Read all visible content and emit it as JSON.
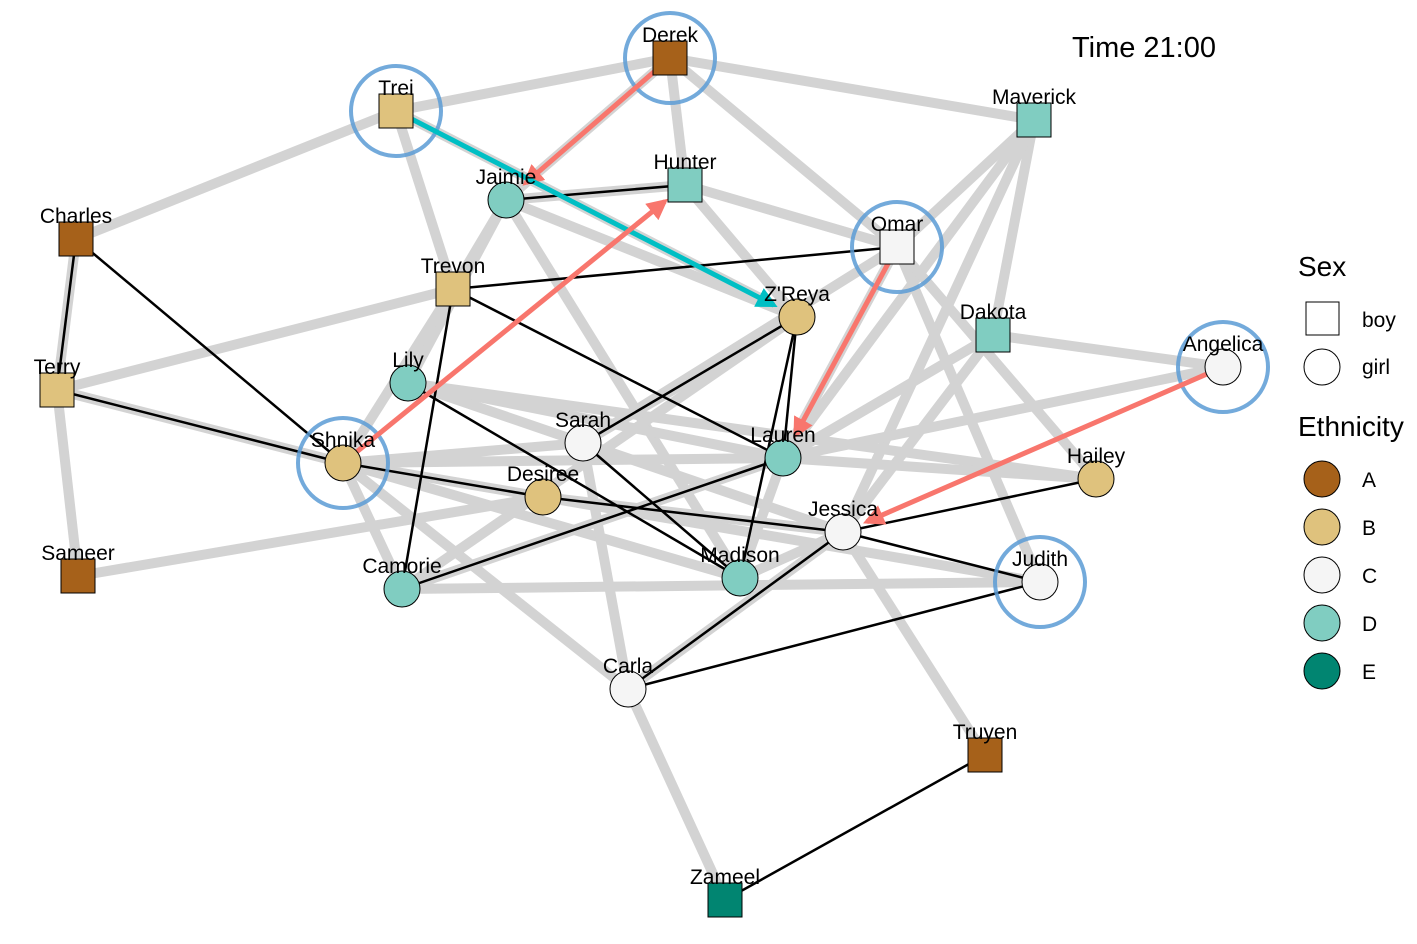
{
  "title": "Time 21:00",
  "colors": {
    "A": "#A6611A",
    "B": "#DFC27D",
    "C": "#F5F5F5",
    "D": "#80CDC1",
    "E": "#018571",
    "gray_edge": "#D3D3D3",
    "black_edge": "#000000",
    "pink_arrow": "#F8766D",
    "teal_arrow": "#00BFC4",
    "highlight": "#5B9BD5"
  },
  "legend": {
    "sex_title": "Sex",
    "sex": [
      {
        "label": "boy",
        "shape": "square"
      },
      {
        "label": "girl",
        "shape": "circle"
      }
    ],
    "ethnicity_title": "Ethnicity",
    "ethnicity": [
      {
        "label": "A"
      },
      {
        "label": "B"
      },
      {
        "label": "C"
      },
      {
        "label": "D"
      },
      {
        "label": "E"
      }
    ]
  },
  "nodes": [
    {
      "id": "derek",
      "label": "Derek",
      "sex": "boy",
      "eth": "A",
      "highlight": true
    },
    {
      "id": "trei",
      "label": "Trei",
      "sex": "boy",
      "eth": "B",
      "highlight": true
    },
    {
      "id": "maverick",
      "label": "Maverick",
      "sex": "boy",
      "eth": "D",
      "highlight": false
    },
    {
      "id": "hunter",
      "label": "Hunter",
      "sex": "boy",
      "eth": "D",
      "highlight": false
    },
    {
      "id": "jaimie",
      "label": "Jaimie",
      "sex": "girl",
      "eth": "D",
      "highlight": false
    },
    {
      "id": "charles",
      "label": "Charles",
      "sex": "boy",
      "eth": "A",
      "highlight": false
    },
    {
      "id": "omar",
      "label": "Omar",
      "sex": "boy",
      "eth": "C",
      "highlight": true
    },
    {
      "id": "trevon",
      "label": "Trevon",
      "sex": "boy",
      "eth": "B",
      "highlight": false
    },
    {
      "id": "zreya",
      "label": "Z'Reya",
      "sex": "girl",
      "eth": "B",
      "highlight": false
    },
    {
      "id": "dakota",
      "label": "Dakota",
      "sex": "boy",
      "eth": "D",
      "highlight": false
    },
    {
      "id": "angelica",
      "label": "Angelica",
      "sex": "girl",
      "eth": "C",
      "highlight": true
    },
    {
      "id": "terry",
      "label": "Terry",
      "sex": "boy",
      "eth": "B",
      "highlight": false
    },
    {
      "id": "lily",
      "label": "Lily",
      "sex": "girl",
      "eth": "D",
      "highlight": false
    },
    {
      "id": "sarah",
      "label": "Sarah",
      "sex": "girl",
      "eth": "C",
      "highlight": false
    },
    {
      "id": "shnika",
      "label": "Shnika",
      "sex": "girl",
      "eth": "B",
      "highlight": true
    },
    {
      "id": "lauren",
      "label": "Lauren",
      "sex": "girl",
      "eth": "D",
      "highlight": false
    },
    {
      "id": "desiree",
      "label": "Desiree",
      "sex": "girl",
      "eth": "B",
      "highlight": false
    },
    {
      "id": "hailey",
      "label": "Hailey",
      "sex": "girl",
      "eth": "B",
      "highlight": false
    },
    {
      "id": "jessica",
      "label": "Jessica",
      "sex": "girl",
      "eth": "C",
      "highlight": false
    },
    {
      "id": "sameer",
      "label": "Sameer",
      "sex": "boy",
      "eth": "A",
      "highlight": false
    },
    {
      "id": "camorie",
      "label": "Camorie",
      "sex": "girl",
      "eth": "D",
      "highlight": false
    },
    {
      "id": "madison",
      "label": "Madison",
      "sex": "girl",
      "eth": "D",
      "highlight": false
    },
    {
      "id": "judith",
      "label": "Judith",
      "sex": "girl",
      "eth": "C",
      "highlight": true
    },
    {
      "id": "carla",
      "label": "Carla",
      "sex": "girl",
      "eth": "C",
      "highlight": false
    },
    {
      "id": "truyen",
      "label": "Truyen",
      "sex": "boy",
      "eth": "A",
      "highlight": false
    },
    {
      "id": "zameel",
      "label": "Zameel",
      "sex": "boy",
      "eth": "E",
      "highlight": false
    }
  ],
  "gray_edges": [
    [
      "trei",
      "derek"
    ],
    [
      "derek",
      "maverick"
    ],
    [
      "derek",
      "hunter"
    ],
    [
      "derek",
      "omar"
    ],
    [
      "derek",
      "jaimie"
    ],
    [
      "trei",
      "trevon"
    ],
    [
      "charles",
      "trei"
    ],
    [
      "trei",
      "zreya"
    ],
    [
      "maverick",
      "omar"
    ],
    [
      "maverick",
      "dakota"
    ],
    [
      "maverick",
      "jessica"
    ],
    [
      "maverick",
      "lauren"
    ],
    [
      "hunter",
      "omar"
    ],
    [
      "hunter",
      "zreya"
    ],
    [
      "hunter",
      "jaimie"
    ],
    [
      "jaimie",
      "trevon"
    ],
    [
      "jaimie",
      "lily"
    ],
    [
      "jaimie",
      "madison"
    ],
    [
      "jaimie",
      "zreya"
    ],
    [
      "charles",
      "terry"
    ],
    [
      "omar",
      "lauren"
    ],
    [
      "omar",
      "judith"
    ],
    [
      "omar",
      "hailey"
    ],
    [
      "omar",
      "sarah"
    ],
    [
      "trevon",
      "terry"
    ],
    [
      "trevon",
      "shnika"
    ],
    [
      "dakota",
      "angelica"
    ],
    [
      "dakota",
      "lauren"
    ],
    [
      "dakota",
      "jessica"
    ],
    [
      "terry",
      "sameer"
    ],
    [
      "terry",
      "shnika"
    ],
    [
      "lily",
      "lauren"
    ],
    [
      "lily",
      "jessica"
    ],
    [
      "lily",
      "hailey"
    ],
    [
      "sarah",
      "shnika"
    ],
    [
      "sarah",
      "zreya"
    ],
    [
      "shnika",
      "desiree"
    ],
    [
      "shnika",
      "carla"
    ],
    [
      "shnika",
      "camorie"
    ],
    [
      "shnika",
      "madison"
    ],
    [
      "shnika",
      "lauren"
    ],
    [
      "lauren",
      "hailey"
    ],
    [
      "lauren",
      "madison"
    ],
    [
      "desiree",
      "jessica"
    ],
    [
      "desiree",
      "judith"
    ],
    [
      "desiree",
      "sameer"
    ],
    [
      "jessica",
      "truyen"
    ],
    [
      "jessica",
      "carla"
    ],
    [
      "jessica",
      "madison"
    ],
    [
      "camorie",
      "judith"
    ],
    [
      "camorie",
      "zreya"
    ],
    [
      "camorie",
      "lauren"
    ],
    [
      "carla",
      "zameel"
    ],
    [
      "carla",
      "sarah"
    ],
    [
      "carla",
      "jessica"
    ],
    [
      "angelica",
      "lauren"
    ]
  ],
  "black_edges": [
    [
      "charles",
      "terry"
    ],
    [
      "charles",
      "shnika"
    ],
    [
      "terry",
      "shnika"
    ],
    [
      "trevon",
      "omar"
    ],
    [
      "trevon",
      "camorie"
    ],
    [
      "trevon",
      "lauren"
    ],
    [
      "jaimie",
      "hunter"
    ],
    [
      "lily",
      "madison"
    ],
    [
      "sarah",
      "madison"
    ],
    [
      "sarah",
      "zreya"
    ],
    [
      "zreya",
      "lauren"
    ],
    [
      "zreya",
      "madison"
    ],
    [
      "shnika",
      "desiree"
    ],
    [
      "camorie",
      "lauren"
    ],
    [
      "jessica",
      "judith"
    ],
    [
      "jessica",
      "hailey"
    ],
    [
      "jessica",
      "carla"
    ],
    [
      "carla",
      "judith"
    ],
    [
      "truyen",
      "zameel"
    ],
    [
      "desiree",
      "jessica"
    ]
  ],
  "arrows": [
    {
      "from": "derek",
      "to": "jaimie",
      "color": "pink"
    },
    {
      "from": "trei",
      "to": "zreya",
      "color": "teal"
    },
    {
      "from": "shnika",
      "to": "hunter",
      "color": "pink"
    },
    {
      "from": "omar",
      "to": "lauren",
      "color": "pink"
    },
    {
      "from": "angelica",
      "to": "jessica",
      "color": "pink"
    }
  ]
}
